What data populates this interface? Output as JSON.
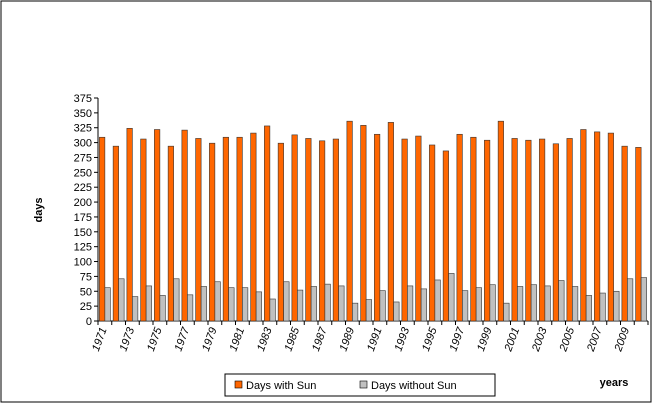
{
  "chart_data": {
    "type": "bar",
    "y_label": "days",
    "x_label": "years",
    "categories": [
      "1971",
      null,
      "1973",
      null,
      "1975",
      null,
      "1977",
      null,
      "1979",
      null,
      "1981",
      null,
      "1983",
      null,
      "1985",
      null,
      "1987",
      null,
      "1989",
      null,
      "1991",
      null,
      "1993",
      null,
      "1995",
      null,
      "1997",
      null,
      "1999",
      null,
      "2001",
      null,
      "2003",
      null,
      "2005",
      null,
      "2007",
      null,
      "2009",
      null
    ],
    "series": [
      {
        "name": "Days with Sun",
        "color": "#ff6600",
        "values": [
          309,
          294,
          324,
          306,
          322,
          294,
          321,
          307,
          299,
          309,
          309,
          316,
          328,
          299,
          313,
          307,
          303,
          306,
          336,
          329,
          314,
          334,
          306,
          311,
          296,
          286,
          314,
          309,
          304,
          336,
          307,
          304,
          306,
          298,
          307,
          322,
          318,
          316,
          294,
          292
        ]
      },
      {
        "name": "Days without Sun",
        "color": "#c0c0c0",
        "values": [
          56,
          71,
          41,
          59,
          43,
          71,
          44,
          58,
          66,
          56,
          56,
          49,
          37,
          66,
          52,
          58,
          62,
          59,
          30,
          36,
          51,
          32,
          59,
          54,
          69,
          80,
          51,
          56,
          61,
          30,
          58,
          61,
          59,
          68,
          58,
          43,
          47,
          50,
          71,
          73
        ]
      }
    ],
    "ylim": [
      0,
      375
    ],
    "yticks": [
      0,
      25,
      50,
      75,
      100,
      125,
      150,
      175,
      200,
      225,
      250,
      275,
      300,
      325,
      350,
      375
    ],
    "grid": false,
    "legend": "bottom"
  }
}
